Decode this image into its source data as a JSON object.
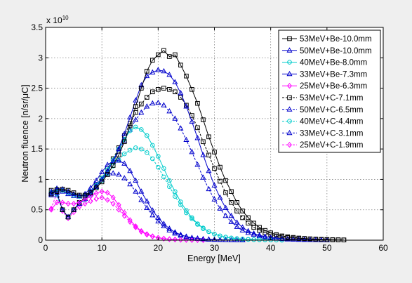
{
  "chart_data": {
    "type": "line",
    "xlabel": "Energy [MeV]",
    "ylabel": "Neutron fluence [n/sr/μC]",
    "y_exponent_label": "x 10",
    "y_exponent_power": "10",
    "xlim": [
      0,
      60
    ],
    "ylim": [
      0,
      3.5
    ],
    "x_ticks": [
      "0",
      "10",
      "20",
      "30",
      "40",
      "50",
      "60"
    ],
    "y_ticks": [
      "0",
      "0.5",
      "1",
      "1.5",
      "2",
      "2.5",
      "3",
      "3.5"
    ],
    "grid": true,
    "legend_position": "top-right",
    "series": [
      {
        "name": "53MeV+Be-10.0mm",
        "color": "#000000",
        "marker": "square",
        "dash": "solid",
        "x": [
          1,
          2,
          3,
          4,
          5,
          6,
          7,
          8,
          9,
          10,
          11,
          12,
          13,
          14,
          15,
          16,
          17,
          18,
          19,
          20,
          21,
          22,
          23,
          24,
          25,
          26,
          27,
          28,
          29,
          30,
          31,
          32,
          33,
          34,
          35,
          36,
          37,
          38,
          39,
          40,
          41,
          42,
          43,
          44,
          45,
          46,
          47,
          48,
          49,
          50,
          51,
          52,
          53
        ],
        "y": [
          0.76,
          0.83,
          0.84,
          0.82,
          0.78,
          0.74,
          0.74,
          0.78,
          0.86,
          0.96,
          1.08,
          1.23,
          1.4,
          1.62,
          1.88,
          2.2,
          2.5,
          2.78,
          2.96,
          3.05,
          3.12,
          3.02,
          3.05,
          2.88,
          2.7,
          2.48,
          2.25,
          1.98,
          1.7,
          1.45,
          1.2,
          0.98,
          0.8,
          0.62,
          0.48,
          0.37,
          0.28,
          0.21,
          0.16,
          0.12,
          0.09,
          0.07,
          0.055,
          0.045,
          0.035,
          0.028,
          0.022,
          0.017,
          0.013,
          0.01,
          0.008,
          0.006,
          0.004
        ]
      },
      {
        "name": "50MeV+Be-10.0mm",
        "color": "#0000cc",
        "marker": "triangle",
        "dash": "solid",
        "x": [
          1,
          2,
          3,
          4,
          5,
          6,
          7,
          8,
          9,
          10,
          11,
          12,
          13,
          14,
          15,
          16,
          17,
          18,
          19,
          20,
          21,
          22,
          23,
          24,
          25,
          26,
          27,
          28,
          29,
          30,
          31,
          32,
          33,
          34,
          35,
          36,
          37,
          38,
          39,
          40,
          41,
          42,
          43,
          44,
          45,
          46,
          47,
          48,
          49,
          50
        ],
        "y": [
          0.78,
          0.85,
          0.84,
          0.8,
          0.76,
          0.73,
          0.74,
          0.8,
          0.88,
          1.0,
          1.13,
          1.3,
          1.5,
          1.75,
          2.02,
          2.3,
          2.55,
          2.7,
          2.76,
          2.8,
          2.78,
          2.72,
          2.6,
          2.42,
          2.2,
          1.95,
          1.68,
          1.4,
          1.14,
          0.9,
          0.7,
          0.53,
          0.4,
          0.29,
          0.21,
          0.15,
          0.11,
          0.08,
          0.06,
          0.045,
          0.034,
          0.025,
          0.02,
          0.015,
          0.011,
          0.008,
          0.006,
          0.004,
          0.003,
          0.002
        ]
      },
      {
        "name": "40MeV+Be-8.0mm",
        "color": "#00cccc",
        "marker": "circle",
        "dash": "solid",
        "x": [
          1,
          2,
          3,
          4,
          5,
          6,
          7,
          8,
          9,
          10,
          11,
          12,
          13,
          14,
          15,
          16,
          17,
          18,
          19,
          20,
          21,
          22,
          23,
          24,
          25,
          26,
          27,
          28,
          29,
          30,
          31,
          32,
          33,
          34,
          35,
          36,
          37,
          38,
          39,
          40,
          41,
          42
        ],
        "y": [
          0.78,
          0.84,
          0.82,
          0.78,
          0.74,
          0.72,
          0.74,
          0.8,
          0.9,
          1.02,
          1.16,
          1.32,
          1.5,
          1.66,
          1.8,
          1.86,
          1.82,
          1.72,
          1.56,
          1.38,
          1.18,
          0.98,
          0.8,
          0.63,
          0.49,
          0.37,
          0.27,
          0.2,
          0.14,
          0.1,
          0.07,
          0.05,
          0.035,
          0.025,
          0.018,
          0.013,
          0.009,
          0.007,
          0.005,
          0.003,
          0.002,
          0.001
        ]
      },
      {
        "name": "33MeV+Be-7.3mm",
        "color": "#0000cc",
        "marker": "triangle",
        "dash": "solid",
        "x": [
          1,
          2,
          3,
          4,
          5,
          6,
          7,
          8,
          9,
          10,
          11,
          12,
          13,
          14,
          15,
          16,
          17,
          18,
          19,
          20,
          21,
          22,
          23,
          24,
          25,
          26,
          27,
          28,
          29,
          30,
          31,
          32,
          33,
          34,
          35
        ],
        "y": [
          0.74,
          0.82,
          0.8,
          0.76,
          0.73,
          0.72,
          0.76,
          0.86,
          0.98,
          1.12,
          1.24,
          1.3,
          1.31,
          1.26,
          1.14,
          0.98,
          0.8,
          0.64,
          0.49,
          0.37,
          0.27,
          0.19,
          0.13,
          0.09,
          0.06,
          0.04,
          0.03,
          0.02,
          0.014,
          0.01,
          0.007,
          0.005,
          0.003,
          0.002,
          0.001
        ]
      },
      {
        "name": "25MeV+Be-6.3mm",
        "color": "#ff00ff",
        "marker": "diamond",
        "dash": "solid",
        "x": [
          1,
          2,
          3,
          4,
          5,
          6,
          7,
          8,
          9,
          10,
          11,
          12,
          13,
          14,
          15,
          16,
          17,
          18,
          19,
          20,
          21,
          22,
          23,
          24,
          25,
          26,
          27,
          28
        ],
        "y": [
          0.5,
          0.62,
          0.62,
          0.6,
          0.6,
          0.62,
          0.67,
          0.72,
          0.77,
          0.8,
          0.78,
          0.7,
          0.58,
          0.45,
          0.33,
          0.23,
          0.15,
          0.1,
          0.065,
          0.04,
          0.026,
          0.017,
          0.011,
          0.007,
          0.005,
          0.003,
          0.002,
          0.001
        ]
      },
      {
        "name": "53MeV+C-7.1mm",
        "color": "#000000",
        "marker": "square",
        "dash": "dashed",
        "x": [
          1,
          2,
          3,
          4,
          5,
          6,
          7,
          8,
          9,
          10,
          11,
          12,
          13,
          14,
          15,
          16,
          17,
          18,
          19,
          20,
          21,
          22,
          23,
          24,
          25,
          26,
          27,
          28,
          29,
          30,
          31,
          32,
          33,
          34,
          35,
          36,
          37,
          38,
          39,
          40,
          41,
          42,
          43,
          44,
          45,
          46,
          47,
          48,
          49,
          50,
          51,
          52,
          53
        ],
        "y": [
          0.82,
          0.8,
          0.5,
          0.38,
          0.5,
          0.62,
          0.7,
          0.78,
          0.9,
          1.02,
          1.18,
          1.34,
          1.52,
          1.72,
          1.92,
          2.1,
          2.24,
          2.35,
          2.44,
          2.48,
          2.5,
          2.48,
          2.44,
          2.35,
          2.22,
          2.05,
          1.85,
          1.62,
          1.4,
          1.18,
          0.97,
          0.78,
          0.62,
          0.48,
          0.37,
          0.28,
          0.21,
          0.16,
          0.12,
          0.09,
          0.07,
          0.055,
          0.043,
          0.034,
          0.027,
          0.021,
          0.016,
          0.012,
          0.009,
          0.007,
          0.005,
          0.004,
          0.003
        ]
      },
      {
        "name": "50MeV+C-6.5mm",
        "color": "#0000cc",
        "marker": "triangle",
        "dash": "dashed",
        "x": [
          1,
          2,
          3,
          4,
          5,
          6,
          7,
          8,
          9,
          10,
          11,
          12,
          13,
          14,
          15,
          16,
          17,
          18,
          19,
          20,
          21,
          22,
          23,
          24,
          25,
          26,
          27,
          28,
          29,
          30,
          31,
          32,
          33,
          34,
          35,
          36,
          37,
          38,
          39,
          40,
          41,
          42,
          43,
          44,
          45,
          46,
          47,
          48,
          49,
          50
        ],
        "y": [
          0.8,
          0.78,
          0.5,
          0.38,
          0.5,
          0.6,
          0.68,
          0.76,
          0.88,
          1.0,
          1.14,
          1.3,
          1.46,
          1.64,
          1.82,
          1.98,
          2.1,
          2.2,
          2.25,
          2.26,
          2.22,
          2.12,
          2.0,
          1.84,
          1.65,
          1.45,
          1.24,
          1.03,
          0.84,
          0.67,
          0.52,
          0.4,
          0.3,
          0.22,
          0.16,
          0.12,
          0.09,
          0.065,
          0.048,
          0.035,
          0.026,
          0.019,
          0.014,
          0.01,
          0.008,
          0.006,
          0.004,
          0.003,
          0.002,
          0.001
        ]
      },
      {
        "name": "40MeV+C-4.4mm",
        "color": "#00cccc",
        "marker": "circle",
        "dash": "dashed",
        "x": [
          1,
          2,
          3,
          4,
          5,
          6,
          7,
          8,
          9,
          10,
          11,
          12,
          13,
          14,
          15,
          16,
          17,
          18,
          19,
          20,
          21,
          22,
          23,
          24,
          25,
          26,
          27,
          28,
          29,
          30,
          31,
          32,
          33,
          34,
          35,
          36,
          37,
          38,
          39,
          40,
          41,
          42
        ],
        "y": [
          0.78,
          0.76,
          0.5,
          0.38,
          0.5,
          0.6,
          0.66,
          0.74,
          0.86,
          0.98,
          1.1,
          1.22,
          1.32,
          1.42,
          1.48,
          1.52,
          1.5,
          1.44,
          1.34,
          1.2,
          1.04,
          0.88,
          0.72,
          0.58,
          0.45,
          0.35,
          0.26,
          0.19,
          0.14,
          0.1,
          0.07,
          0.05,
          0.035,
          0.025,
          0.018,
          0.013,
          0.009,
          0.007,
          0.005,
          0.003,
          0.002,
          0.001
        ]
      },
      {
        "name": "33MeV+C-3.1mm",
        "color": "#0000cc",
        "marker": "triangle",
        "dash": "dashed",
        "x": [
          1,
          2,
          3,
          4,
          5,
          6,
          7,
          8,
          9,
          10,
          11,
          12,
          13,
          14,
          15,
          16,
          17,
          18,
          19,
          20,
          21,
          22,
          23,
          24,
          25,
          26,
          27,
          28,
          29,
          30,
          31,
          32,
          33,
          34,
          35
        ],
        "y": [
          0.76,
          0.74,
          0.5,
          0.38,
          0.5,
          0.6,
          0.68,
          0.78,
          0.9,
          1.0,
          1.08,
          1.1,
          1.08,
          1.02,
          0.92,
          0.8,
          0.66,
          0.53,
          0.41,
          0.31,
          0.23,
          0.16,
          0.11,
          0.075,
          0.05,
          0.034,
          0.023,
          0.015,
          0.01,
          0.007,
          0.005,
          0.003,
          0.002,
          0.001,
          0.001
        ]
      },
      {
        "name": "25MeV+C-1.9mm",
        "color": "#ff00ff",
        "marker": "diamond",
        "dash": "dashed",
        "x": [
          1,
          2,
          3,
          4,
          5,
          6,
          7,
          8,
          9,
          10,
          11,
          12,
          13,
          14,
          15,
          16,
          17,
          18,
          19,
          20,
          21,
          22,
          23,
          24,
          25,
          26,
          27,
          28
        ],
        "y": [
          0.52,
          0.78,
          0.48,
          0.36,
          0.46,
          0.55,
          0.6,
          0.64,
          0.68,
          0.7,
          0.66,
          0.6,
          0.5,
          0.4,
          0.3,
          0.21,
          0.14,
          0.09,
          0.06,
          0.038,
          0.024,
          0.015,
          0.01,
          0.006,
          0.004,
          0.003,
          0.002,
          0.001
        ]
      }
    ]
  }
}
